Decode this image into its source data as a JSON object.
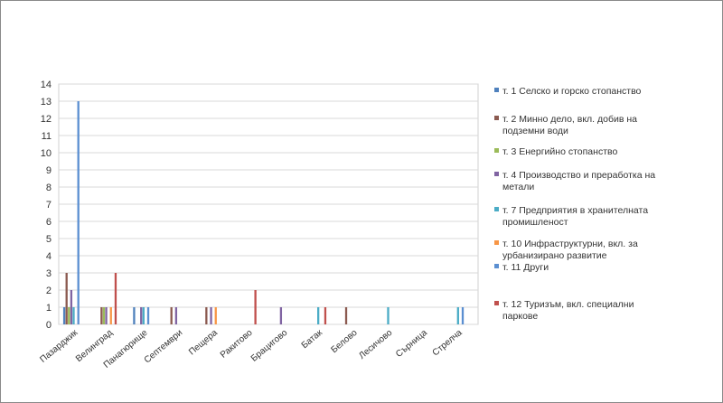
{
  "chart_data": {
    "type": "bar",
    "title": "",
    "xlabel": "",
    "ylabel": "",
    "ylim": [
      0,
      14
    ],
    "yticks": [
      0,
      1,
      2,
      3,
      4,
      5,
      6,
      7,
      8,
      9,
      10,
      11,
      12,
      13,
      14
    ],
    "grid": true,
    "legend_position": "right",
    "categories": [
      "Пазарджик",
      "Велинград",
      "Панагюрище",
      "Септември",
      "Пещера",
      "Ракитово",
      "Брацигово",
      "Батак",
      "Белово",
      "Лесичово",
      "Сърница",
      "Стрелча"
    ],
    "series": [
      {
        "name": "т. 1 Селско и горско стопанство",
        "color": "#4f81bd",
        "values": [
          1,
          0,
          1,
          0,
          0,
          0,
          0,
          0,
          0,
          0,
          0,
          0
        ]
      },
      {
        "name": "т. 2 Минно дело, вкл. добив на подземни води",
        "color": "#8b5a50",
        "values": [
          3,
          1,
          0,
          1,
          1,
          0,
          0,
          0,
          1,
          0,
          0,
          0
        ]
      },
      {
        "name": "т. 3 Енергийно стопанство",
        "color": "#9bbb59",
        "values": [
          1,
          1,
          0,
          0,
          0,
          0,
          0,
          0,
          0,
          0,
          0,
          0
        ]
      },
      {
        "name": "т. 4 Производство и преработка на метали",
        "color": "#8064a2",
        "values": [
          2,
          1,
          1,
          1,
          1,
          0,
          1,
          0,
          0,
          0,
          0,
          0
        ]
      },
      {
        "name": "т. 7 Предприятия в хранителната промишленост",
        "color": "#4bacc6",
        "values": [
          1,
          0,
          1,
          0,
          0,
          0,
          0,
          1,
          0,
          1,
          0,
          1
        ]
      },
      {
        "name": "т. 10 Инфраструктурни, вкл. за урбанизирано развитие",
        "color": "#f79646",
        "values": [
          0,
          1,
          0,
          0,
          1,
          0,
          0,
          0,
          0,
          0,
          0,
          0
        ]
      },
      {
        "name": "т. 11 Други",
        "color": "#5b8fd1",
        "values": [
          13,
          0,
          1,
          0,
          0,
          0,
          0,
          0,
          0,
          0,
          0,
          1
        ]
      },
      {
        "name": "т. 12 Туризъм, вкл. специални паркове",
        "color": "#c0504d",
        "values": [
          0,
          3,
          0,
          0,
          0,
          2,
          0,
          1,
          0,
          0,
          0,
          0
        ]
      }
    ]
  }
}
